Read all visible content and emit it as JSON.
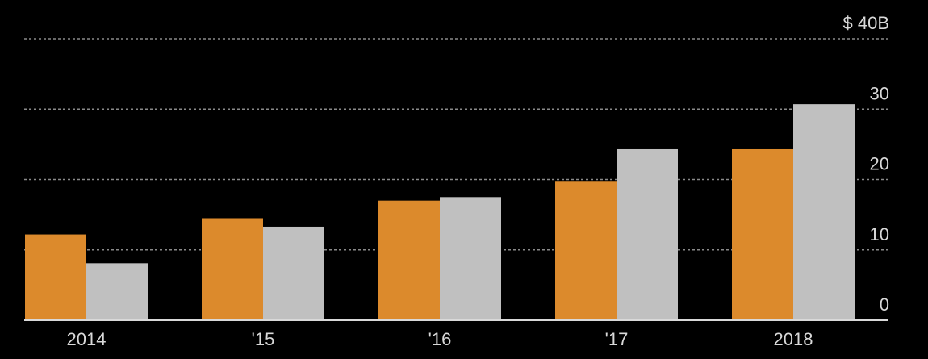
{
  "chart_data": {
    "type": "bar",
    "categories": [
      "2014",
      "'15",
      "'16",
      "'17",
      "2018"
    ],
    "series": [
      {
        "color": "#dc8a2c",
        "values": [
          12.2,
          14.5,
          17.0,
          19.8,
          24.3
        ]
      },
      {
        "color": "#c0c0c0",
        "values": [
          8.1,
          13.3,
          17.5,
          24.3,
          30.7
        ]
      }
    ],
    "ylim": [
      0,
      40
    ],
    "yticks": [
      0,
      10,
      20,
      30,
      40
    ],
    "ytick_labels": [
      "0",
      "10",
      "20",
      "30",
      "$ 40B"
    ],
    "grid": true,
    "background": "#000000",
    "axis_color": "#d9d9d9",
    "grid_color": "#8a8a8a"
  }
}
